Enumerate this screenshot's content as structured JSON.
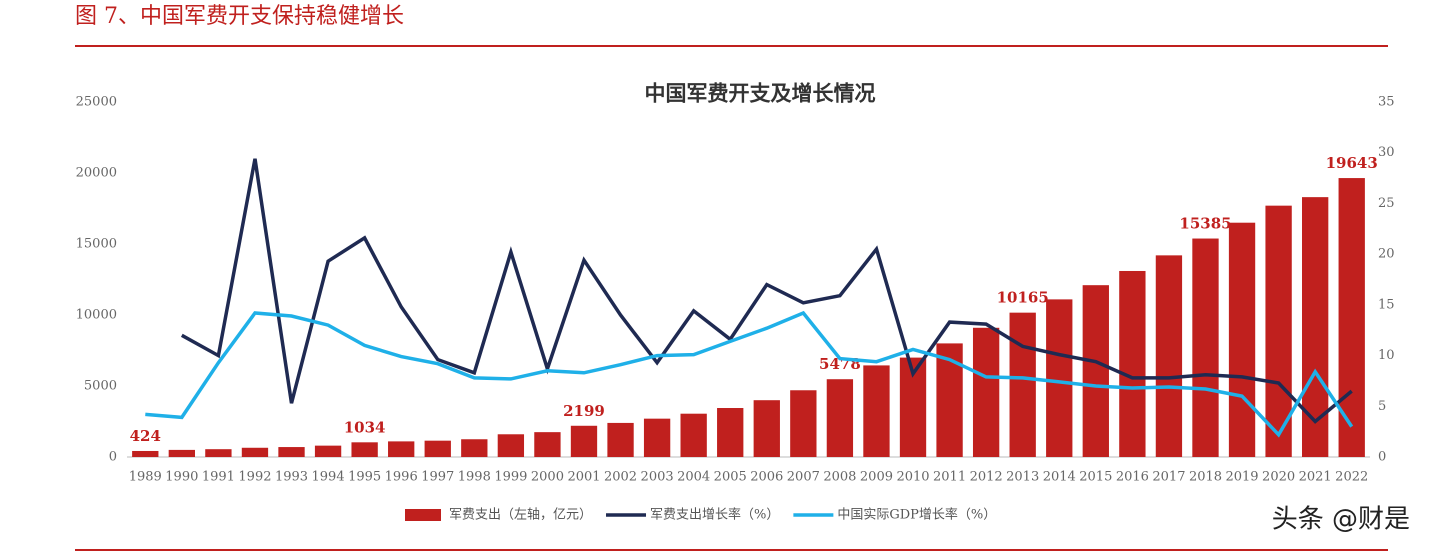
{
  "header": {
    "title": "图 7、中国军费开支保持稳健增长"
  },
  "chart_data": {
    "type": "bar-line",
    "title": "中国军费开支及增长情况",
    "categories": [
      "1989",
      "1990",
      "1991",
      "1992",
      "1993",
      "1994",
      "1995",
      "1996",
      "1997",
      "1998",
      "1999",
      "2000",
      "2001",
      "2002",
      "2003",
      "2004",
      "2005",
      "2006",
      "2007",
      "2008",
      "2009",
      "2010",
      "2011",
      "2012",
      "2013",
      "2014",
      "2015",
      "2016",
      "2017",
      "2018",
      "2019",
      "2020",
      "2021",
      "2022"
    ],
    "series": [
      {
        "name": "军费支出（左轴，亿元）",
        "type": "bar",
        "color": "#c0201e",
        "axis": "y",
        "values": [
          424,
          500,
          550,
          650,
          700,
          800,
          1034,
          1100,
          1150,
          1250,
          1600,
          1750,
          2199,
          2400,
          2700,
          3050,
          3450,
          4000,
          4700,
          5478,
          6450,
          7000,
          8000,
          9100,
          10165,
          11100,
          12100,
          13100,
          14200,
          15385,
          16500,
          17700,
          18300,
          19643
        ],
        "value_labels": [
          "424",
          null,
          null,
          null,
          null,
          null,
          "1034",
          null,
          null,
          null,
          null,
          null,
          "2199",
          null,
          null,
          null,
          null,
          null,
          null,
          "5478",
          null,
          null,
          null,
          null,
          "10165",
          null,
          null,
          null,
          null,
          "15385",
          null,
          null,
          null,
          "19643"
        ]
      },
      {
        "name": "军费支出增长率（%）",
        "type": "line",
        "color": "#1f2a52",
        "axis": "y2",
        "values": [
          null,
          12.0,
          10.0,
          29.4,
          5.3,
          19.3,
          21.6,
          14.8,
          9.6,
          8.3,
          20.2,
          8.7,
          19.4,
          14.0,
          9.3,
          14.4,
          11.6,
          17.0,
          15.2,
          15.9,
          20.5,
          8.2,
          13.3,
          13.1,
          10.9,
          10.1,
          9.4,
          7.8,
          7.8,
          8.1,
          7.9,
          7.3,
          3.5,
          6.5
        ]
      },
      {
        "name": "中国实际GDP增长率（%）",
        "type": "line",
        "color": "#1fb0e8",
        "axis": "y2",
        "values": [
          4.2,
          3.9,
          9.3,
          14.2,
          13.9,
          13.0,
          11.0,
          9.9,
          9.2,
          7.8,
          7.7,
          8.5,
          8.3,
          9.1,
          10.0,
          10.1,
          11.4,
          12.7,
          14.2,
          9.7,
          9.4,
          10.6,
          9.6,
          7.9,
          7.8,
          7.4,
          7.0,
          6.8,
          6.9,
          6.7,
          6.0,
          2.2,
          8.4,
          3.0
        ]
      }
    ],
    "ylim": [
      0,
      25000
    ],
    "yticks": [
      0,
      5000,
      10000,
      15000,
      20000,
      25000
    ],
    "y2lim": [
      0,
      35
    ],
    "y2ticks": [
      0,
      5,
      10,
      15,
      20,
      25,
      30,
      35
    ],
    "grid": false,
    "legend": "bottom"
  },
  "watermark": "头条 @财是"
}
